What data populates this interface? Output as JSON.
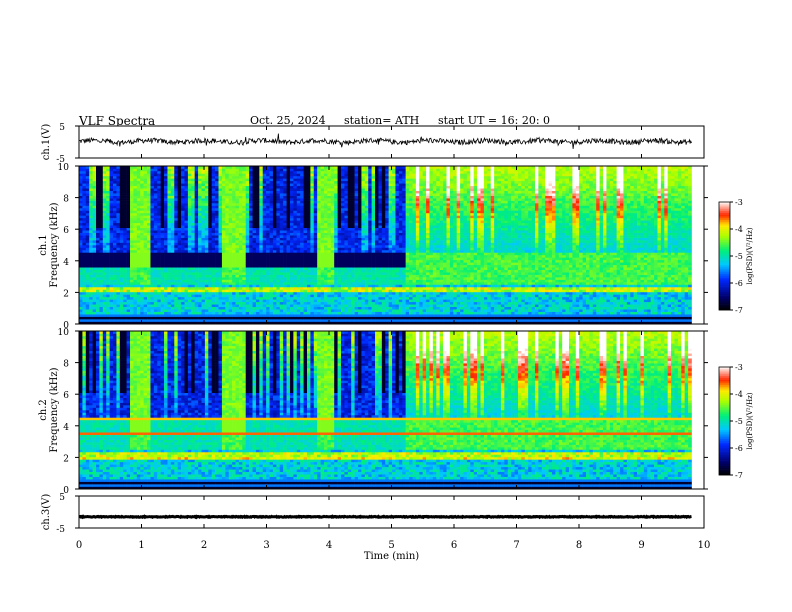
{
  "header": {
    "title": "VLF  Spectra",
    "date": "Oct. 25, 2024",
    "station": "station= ATH",
    "start": "start  UT  =    16: 20: 0"
  },
  "chart_data": [
    {
      "type": "line",
      "id": "ch1",
      "ylabel": "ch.1(V)",
      "ylim": [
        -5,
        5
      ],
      "y_ticks": [
        "5",
        "-5"
      ],
      "xlim": [
        0,
        10
      ],
      "baseline": 0.2,
      "color": "#000000"
    },
    {
      "type": "heatmap",
      "id": "ch1-spectrogram",
      "ylabel": "ch.1\nFrequency  (kHz)",
      "ylim": [
        0,
        10
      ],
      "y_ticks": [
        "0",
        "2",
        "4",
        "6",
        "8",
        "10"
      ],
      "xlim": [
        0,
        10
      ],
      "data_end_minute": 9.8,
      "colorbar": {
        "label": "log(PSD)(V²/Hz)",
        "range": [
          -7,
          -3
        ],
        "ticks": [
          "-3",
          "-4",
          "-5",
          "-6",
          "-7"
        ]
      }
    },
    {
      "type": "heatmap",
      "id": "ch2-spectrogram",
      "ylabel": "ch.2\nFrequency  (kHz)",
      "ylim": [
        0,
        10
      ],
      "y_ticks": [
        "0",
        "2",
        "4",
        "6",
        "8",
        "10"
      ],
      "xlim": [
        0,
        10
      ],
      "data_end_minute": 9.8,
      "colorbar": {
        "label": "log(PSD)(V²/Hz)",
        "range": [
          -7,
          -3
        ],
        "ticks": [
          "-3",
          "-4",
          "-5",
          "-6",
          "-7"
        ]
      }
    },
    {
      "type": "line",
      "id": "ch3",
      "ylabel": "ch.3(V)",
      "ylim": [
        -5,
        5
      ],
      "y_ticks": [
        "5",
        "-5"
      ],
      "xlim": [
        0,
        10
      ],
      "baseline": -1.5,
      "color": "#000000"
    }
  ],
  "xaxis": {
    "label": "Time  (min)",
    "ticks": [
      "0",
      "1",
      "2",
      "3",
      "4",
      "5",
      "6",
      "7",
      "8",
      "9",
      "10"
    ]
  }
}
